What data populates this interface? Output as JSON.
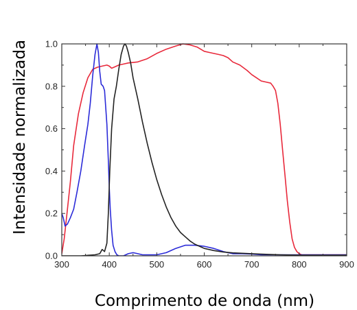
{
  "chart_data": {
    "type": "line",
    "title": "",
    "xlabel": "Comprimento de onda (nm)",
    "ylabel": "Intensidade normalizada",
    "xlim": [
      300,
      900
    ],
    "ylim": [
      0,
      1
    ],
    "xticks": [
      300,
      400,
      500,
      600,
      700,
      800,
      900
    ],
    "yticks": [
      0.0,
      0.2,
      0.4,
      0.6,
      0.8,
      1.0
    ],
    "xtick_labels": [
      "300",
      "400",
      "500",
      "600",
      "700",
      "800",
      "900"
    ],
    "ytick_labels": [
      "0.0",
      "0.2",
      "0.4",
      "0.6",
      "0.8",
      "1.0"
    ],
    "grid": false,
    "legend": "none",
    "series": [
      {
        "color": "#e8283a",
        "x": [
          300,
          305,
          310,
          318,
          325,
          335,
          345,
          355,
          365,
          375,
          385,
          395,
          400,
          405,
          410,
          420,
          430,
          440,
          460,
          480,
          500,
          520,
          540,
          555,
          570,
          585,
          600,
          610,
          620,
          630,
          640,
          650,
          660,
          675,
          690,
          700,
          710,
          720,
          730,
          740,
          745,
          750,
          755,
          760,
          765,
          770,
          775,
          780,
          785,
          790,
          795,
          800,
          805,
          810,
          820,
          840,
          860,
          880,
          900
        ],
        "y": [
          0.01,
          0.08,
          0.18,
          0.35,
          0.52,
          0.67,
          0.77,
          0.84,
          0.88,
          0.89,
          0.895,
          0.9,
          0.895,
          0.885,
          0.89,
          0.9,
          0.905,
          0.91,
          0.915,
          0.93,
          0.955,
          0.975,
          0.99,
          1.0,
          0.995,
          0.985,
          0.965,
          0.96,
          0.955,
          0.95,
          0.945,
          0.935,
          0.915,
          0.9,
          0.875,
          0.855,
          0.84,
          0.825,
          0.82,
          0.815,
          0.8,
          0.78,
          0.72,
          0.62,
          0.5,
          0.38,
          0.26,
          0.16,
          0.08,
          0.04,
          0.02,
          0.01,
          0.005,
          0.005,
          0.005,
          0.005,
          0.005,
          0.005,
          0.005
        ]
      },
      {
        "color": "#2a2ad8",
        "x": [
          300,
          303,
          307,
          312,
          318,
          325,
          332,
          340,
          348,
          355,
          360,
          365,
          370,
          374,
          377,
          380,
          383,
          387,
          390,
          395,
          398,
          400,
          402,
          405,
          408,
          412,
          416,
          420,
          425,
          430,
          440,
          450,
          460,
          470,
          480,
          500,
          520,
          540,
          560,
          580,
          600,
          620,
          640,
          660,
          680,
          700,
          720,
          740,
          760,
          780,
          800,
          820,
          840,
          860,
          880,
          900
        ],
        "y": [
          0.2,
          0.18,
          0.14,
          0.15,
          0.18,
          0.22,
          0.3,
          0.4,
          0.52,
          0.62,
          0.72,
          0.85,
          0.95,
          1.0,
          0.96,
          0.87,
          0.81,
          0.8,
          0.78,
          0.62,
          0.45,
          0.32,
          0.22,
          0.12,
          0.05,
          0.02,
          0.005,
          0.0,
          0.0,
          0.0,
          0.01,
          0.015,
          0.01,
          0.005,
          0.005,
          0.005,
          0.015,
          0.035,
          0.05,
          0.05,
          0.045,
          0.035,
          0.02,
          0.01,
          0.01,
          0.008,
          0.005,
          0.005,
          0.005,
          0.005,
          0.005,
          0.005,
          0.005,
          0.005,
          0.005,
          0.005
        ]
      },
      {
        "color": "#222222",
        "x": [
          300,
          340,
          370,
          380,
          385,
          390,
          395,
          398,
          401,
          405,
          410,
          415,
          420,
          425,
          430,
          433,
          436,
          440,
          445,
          450,
          460,
          470,
          480,
          490,
          500,
          510,
          520,
          530,
          540,
          550,
          560,
          570,
          580,
          590,
          600,
          620,
          640,
          660,
          680,
          700,
          720,
          740,
          760,
          780,
          800,
          820,
          840,
          860,
          880,
          900
        ],
        "y": [
          0.0,
          0.0,
          0.005,
          0.01,
          0.03,
          0.02,
          0.06,
          0.2,
          0.4,
          0.6,
          0.74,
          0.8,
          0.88,
          0.95,
          0.99,
          1.0,
          0.99,
          0.96,
          0.91,
          0.84,
          0.74,
          0.63,
          0.53,
          0.44,
          0.36,
          0.29,
          0.23,
          0.18,
          0.14,
          0.11,
          0.09,
          0.07,
          0.055,
          0.045,
          0.035,
          0.025,
          0.018,
          0.014,
          0.012,
          0.01,
          0.008,
          0.006,
          0.005,
          0.004,
          0.003,
          0.003,
          0.003,
          0.003,
          0.003,
          0.003
        ]
      }
    ]
  }
}
